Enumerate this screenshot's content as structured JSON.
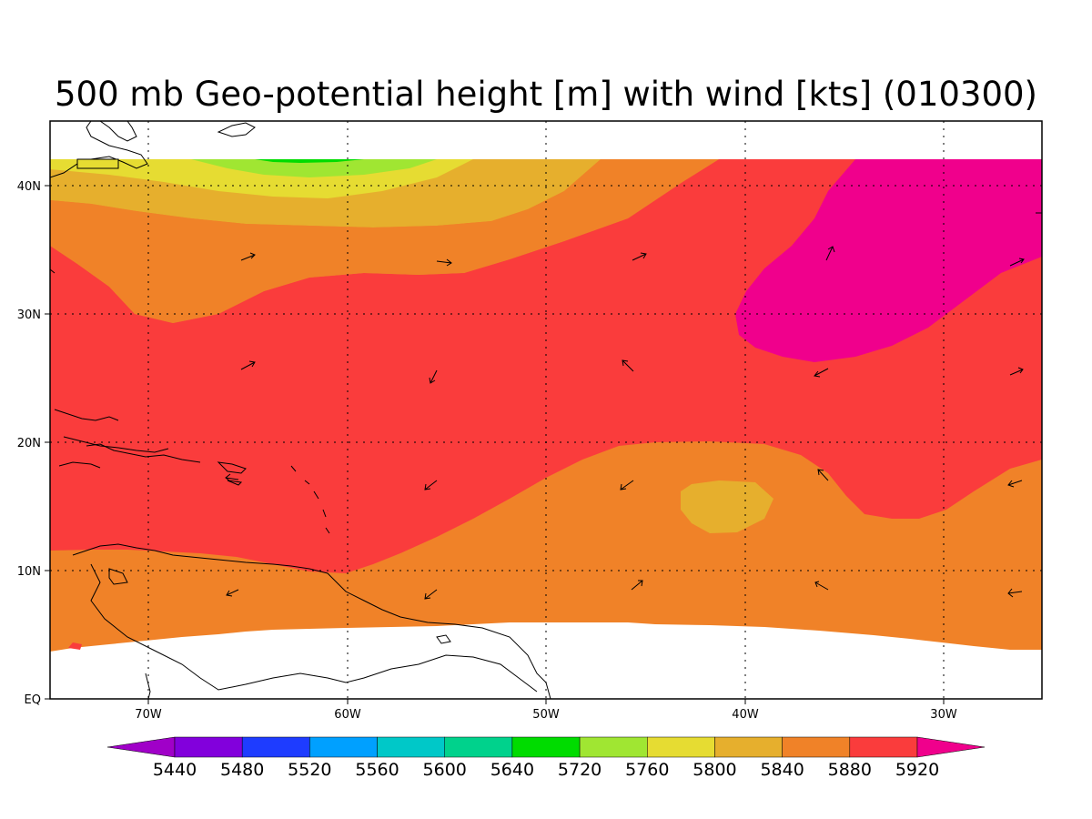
{
  "title": "500 mb Geo-potential height [m] with wind [kts] (010300)",
  "x_ticks": [
    "70W",
    "60W",
    "50W",
    "40W",
    "30W"
  ],
  "y_ticks": [
    "EQ",
    "10N",
    "20N",
    "30N",
    "40N"
  ],
  "colorbar": {
    "labels": [
      "5440",
      "5480",
      "5520",
      "5560",
      "5600",
      "5640",
      "5720",
      "5760",
      "5800",
      "5840",
      "5880",
      "5920"
    ],
    "colors": [
      "#a000c8",
      "#8200dc",
      "#1e3cff",
      "#00a0ff",
      "#00c8c8",
      "#00d28c",
      "#00dc00",
      "#a0e632",
      "#e6dc32",
      "#e6af2d",
      "#f08228",
      "#fa3c3c",
      "#f0008c"
    ]
  },
  "field_colors": {
    "5720": "#00dc00",
    "5760": "#a0e632",
    "5800": "#e6dc32",
    "5840": "#e6af2d",
    "5880": "#f08228",
    "5920": "#fa3c3c",
    "above": "#f0008c"
  }
}
